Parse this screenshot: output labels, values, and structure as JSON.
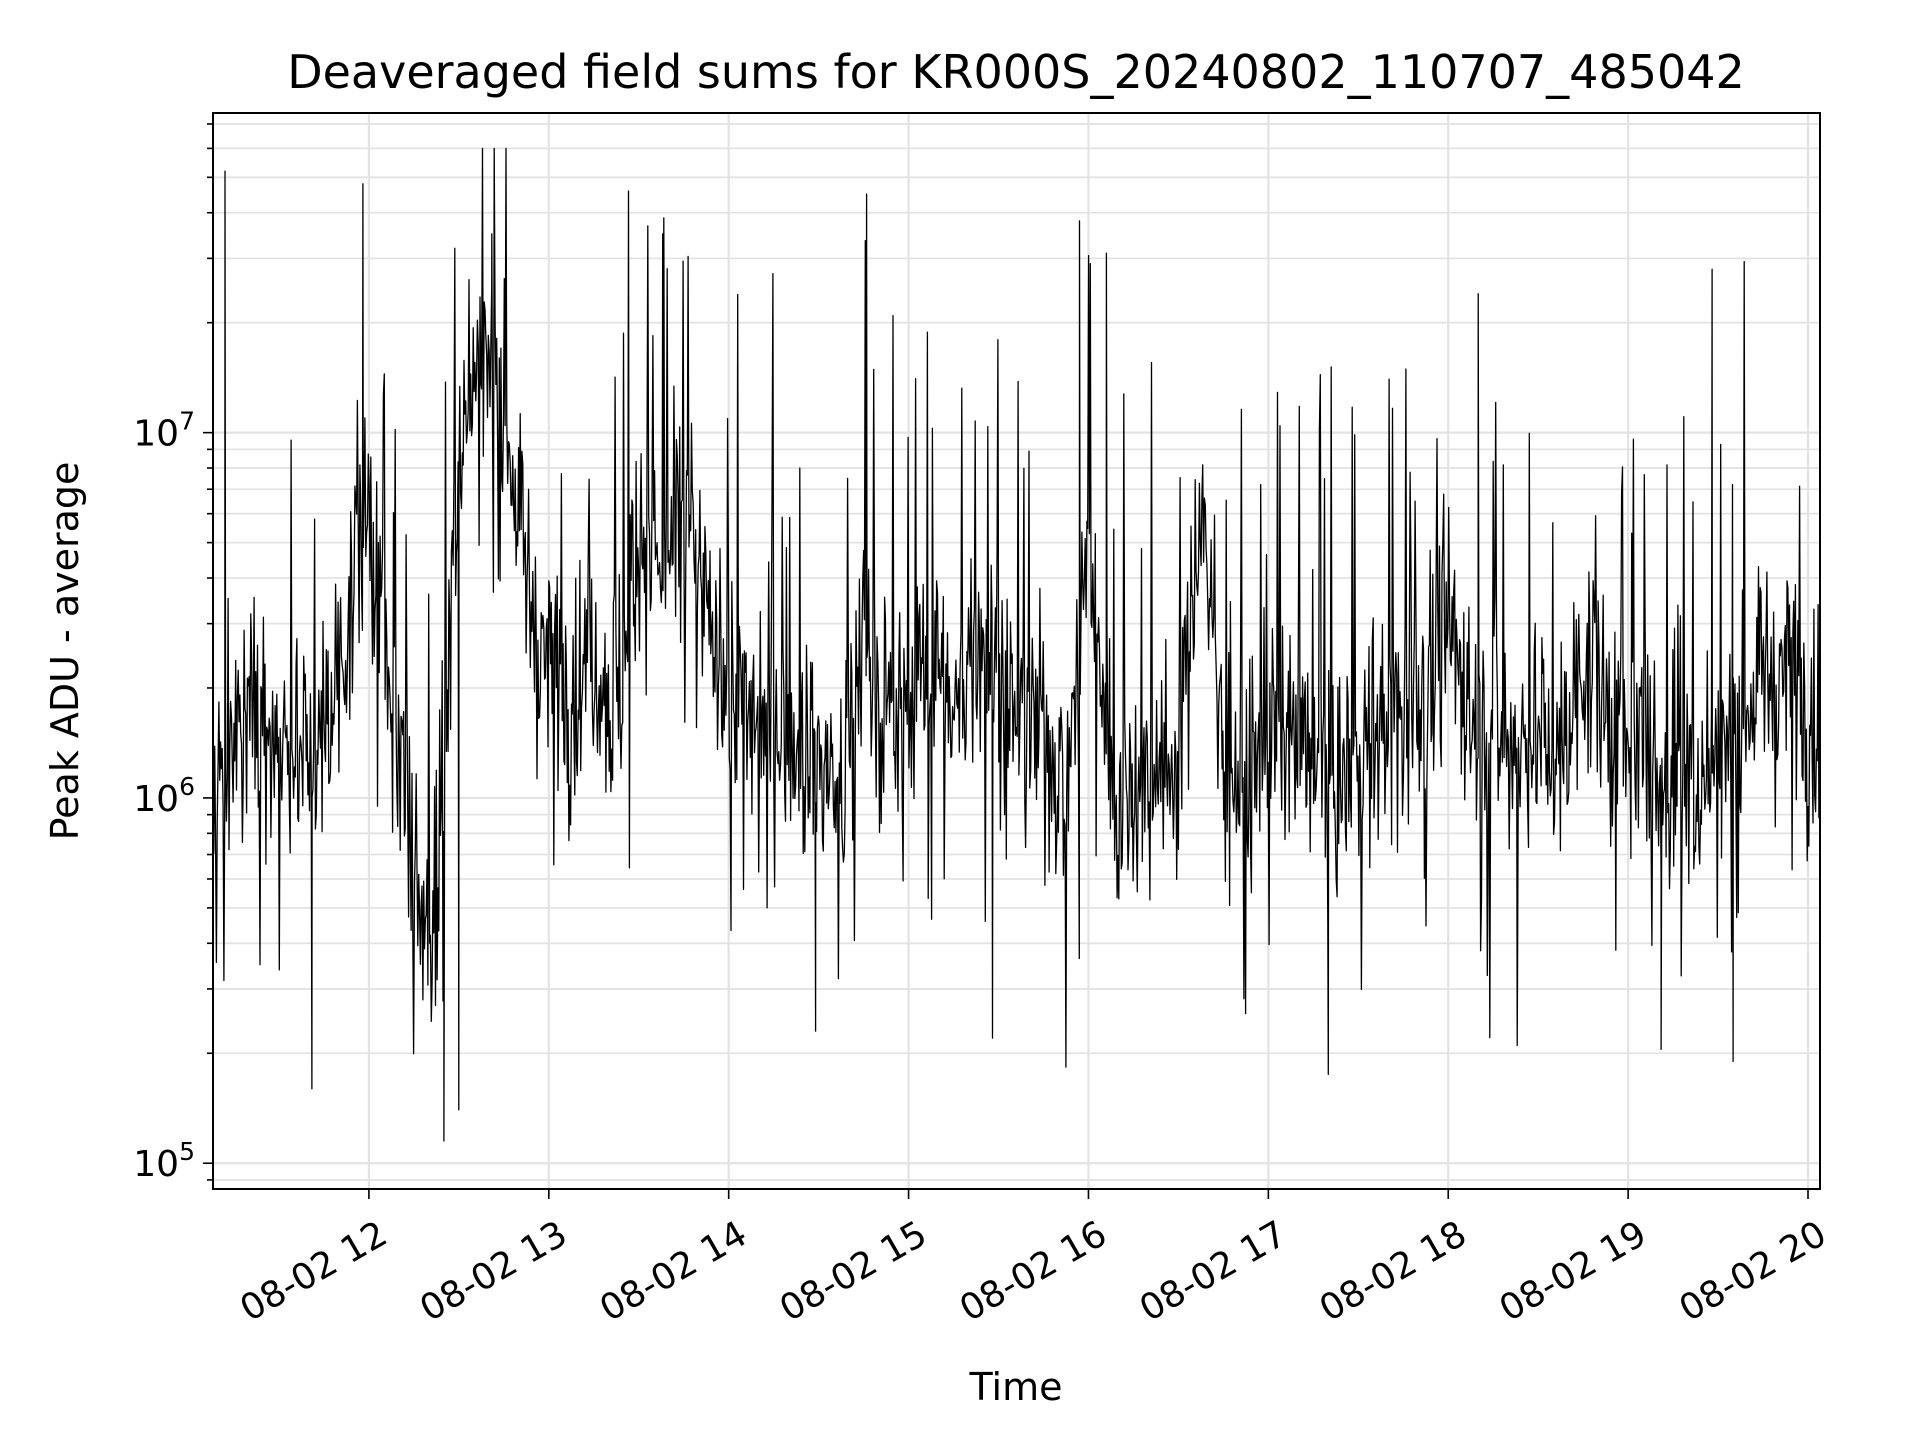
{
  "chart_data": {
    "type": "line",
    "title": "Deaveraged field sums for KR000S_20240802_110707_485042",
    "xlabel": "Time",
    "ylabel": "Peak ADU - average",
    "yscale": "log",
    "ylim": [
      85000,
      75000000
    ],
    "xlim": [
      "2024-08-02 11:08",
      "2024-08-02 20:04"
    ],
    "x_tick_labels": [
      "08-02 12",
      "08-02 13",
      "08-02 14",
      "08-02 15",
      "08-02 16",
      "08-02 17",
      "08-02 18",
      "08-02 19",
      "08-02 20"
    ],
    "y_tick_labels": [
      {
        "base": "10",
        "exp": "5",
        "value": 100000
      },
      {
        "base": "10",
        "exp": "6",
        "value": 1000000
      },
      {
        "base": "10",
        "exp": "7",
        "value": 10000000
      }
    ],
    "grid": true,
    "line_color": "#000000",
    "series": [
      {
        "x": [
          "11:08",
          "11:15",
          "11:23",
          "11:30",
          "11:38",
          "11:45",
          "11:53",
          "12:00",
          "12:08",
          "12:15",
          "12:23",
          "12:30",
          "12:38",
          "12:45",
          "12:53",
          "13:00",
          "13:08",
          "13:15",
          "13:23",
          "13:30",
          "13:38",
          "13:45",
          "13:53",
          "14:00",
          "14:08",
          "14:15",
          "14:23",
          "14:30",
          "14:38",
          "14:45",
          "14:53",
          "15:00",
          "15:08",
          "15:15",
          "15:23",
          "15:30",
          "15:38",
          "15:45",
          "15:53",
          "16:00",
          "16:08",
          "16:15",
          "16:23",
          "16:30",
          "16:38",
          "16:45",
          "16:53",
          "17:00",
          "17:08",
          "17:15",
          "17:23",
          "17:30",
          "17:38",
          "17:45",
          "17:53",
          "18:00",
          "18:08",
          "18:15",
          "18:23",
          "18:30",
          "18:38",
          "18:45",
          "18:53",
          "19:00",
          "19:08",
          "19:15",
          "19:23",
          "19:30",
          "19:38",
          "19:45",
          "19:53",
          "20:00",
          "20:04"
        ],
        "y": [
          1000000,
          1500000,
          1700000,
          1500000,
          1300000,
          1500000,
          3000000,
          6000000,
          1500000,
          600000,
          400000,
          10000000,
          18000000,
          11000000,
          4000000,
          2500000,
          2000000,
          2500000,
          1700000,
          6000000,
          4000000,
          6000000,
          3000000,
          2000000,
          1600000,
          1700000,
          1400000,
          1300000,
          1000000,
          3000000,
          1500000,
          2000000,
          2500000,
          1500000,
          3000000,
          2200000,
          1500000,
          1500000,
          1100000,
          5000000,
          1000000,
          1100000,
          1200000,
          1300000,
          7000000,
          1300000,
          1000000,
          1600000,
          1400000,
          1300000,
          1100000,
          1300000,
          1600000,
          1700000,
          1900000,
          3000000,
          1800000,
          1600000,
          1400000,
          1500000,
          1300000,
          2500000,
          1600000,
          1300000,
          1200000,
          1000000,
          1100000,
          1400000,
          1500000,
          2300000,
          2500000,
          1800000,
          1600000
        ],
        "peaks": [
          {
            "x": "11:12",
            "y": 52000000
          },
          {
            "x": "11:58",
            "y": 48000000
          },
          {
            "x": "12:41",
            "y": 35000000
          },
          {
            "x": "13:38",
            "y": 35000000
          },
          {
            "x": "14:46",
            "y": 45000000
          },
          {
            "x": "15:57",
            "y": 38000000
          },
          {
            "x": "16:06",
            "y": 31000000
          },
          {
            "x": "18:10",
            "y": 24000000
          },
          {
            "x": "19:28",
            "y": 28000000
          }
        ],
        "troughs": [
          {
            "x": "12:25",
            "y": 115000
          },
          {
            "x": "12:30",
            "y": 140000
          },
          {
            "x": "11:41",
            "y": 160000
          },
          {
            "x": "17:20",
            "y": 175000
          },
          {
            "x": "15:28",
            "y": 220000
          },
          {
            "x": "14:29",
            "y": 230000
          },
          {
            "x": "18:23",
            "y": 210000
          },
          {
            "x": "19:11",
            "y": 205000
          },
          {
            "x": "19:35",
            "y": 190000
          }
        ]
      }
    ]
  }
}
